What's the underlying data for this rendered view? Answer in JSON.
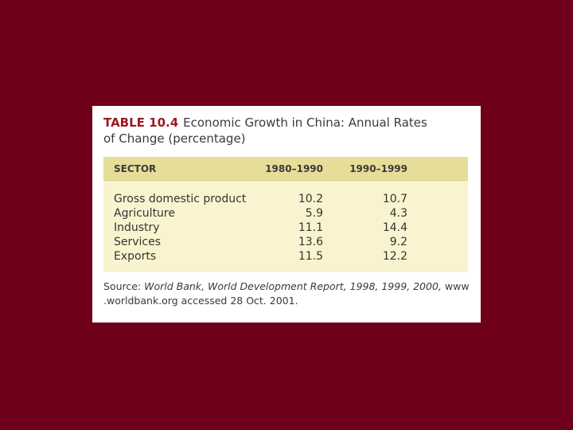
{
  "table": {
    "label": "TABLE 10.4",
    "title_line1": "Economic Growth in China: Annual Rates",
    "title_line2": "of Change (percentage)",
    "headers": [
      "SECTOR",
      "1980–1990",
      "1990–1999"
    ],
    "rows": [
      {
        "sector": "Gross domestic product",
        "v1980_1990": "10.2",
        "v1990_1999": "10.7"
      },
      {
        "sector": "Agriculture",
        "v1980_1990": "5.9",
        "v1990_1999": "4.3"
      },
      {
        "sector": "Industry",
        "v1980_1990": "11.1",
        "v1990_1999": "14.4"
      },
      {
        "sector": "Services",
        "v1980_1990": "13.6",
        "v1990_1999": "9.2"
      },
      {
        "sector": "Exports",
        "v1980_1990": "11.5",
        "v1990_1999": "12.2"
      }
    ],
    "source": {
      "prefix": "Source: ",
      "work": "World Bank, World Development Report, 1998, 1999, 2000,",
      "line1_suffix": " www",
      "line2": ".worldbank.org accessed 28 Oct. 2001."
    }
  },
  "colors": {
    "background": "#6e0019",
    "label": "#9a1a1f",
    "header_band": "#e6dd98",
    "body_band": "#f9f4cf"
  }
}
